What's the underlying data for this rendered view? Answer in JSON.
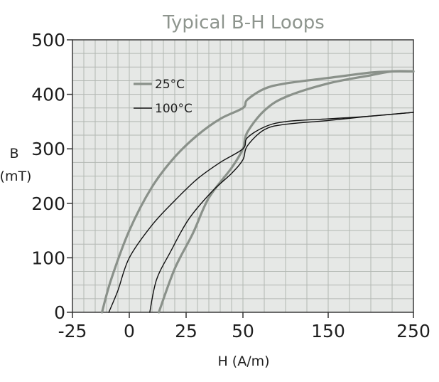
{
  "chart_data": {
    "type": "line",
    "title": "Typical B-H Loops",
    "xlabel": "H (A/m)",
    "ylabel_line1": "B",
    "ylabel_line2": "(mT)",
    "x_ticks": [
      -25,
      0,
      25,
      50,
      150,
      250
    ],
    "x_scale_note": "piecewise axis: linear -25 to 50, compressed 50 to 250",
    "y_ticks": [
      0,
      100,
      200,
      300,
      400,
      500
    ],
    "ylim": [
      0,
      500
    ],
    "grid": true,
    "legend_position": "top-left",
    "series": [
      {
        "name": "25°C",
        "color": "#8a918a",
        "branches": [
          [
            [
              -12,
              0
            ],
            [
              -8,
              60
            ],
            [
              0,
              150
            ],
            [
              10,
              230
            ],
            [
              20,
              285
            ],
            [
              30,
              325
            ],
            [
              40,
              355
            ],
            [
              50,
              375
            ],
            [
              55,
              390
            ],
            [
              75,
              410
            ],
            [
              100,
              420
            ],
            [
              150,
              430
            ],
            [
              200,
              440
            ],
            [
              225,
              442
            ],
            [
              250,
              442
            ]
          ],
          [
            [
              13,
              0
            ],
            [
              20,
              80
            ],
            [
              28,
              145
            ],
            [
              35,
              210
            ],
            [
              45,
              265
            ],
            [
              50,
              300
            ],
            [
              55,
              330
            ],
            [
              75,
              370
            ],
            [
              100,
              395
            ],
            [
              150,
              420
            ],
            [
              200,
              435
            ],
            [
              225,
              442
            ],
            [
              250,
              442
            ]
          ]
        ]
      },
      {
        "name": "100°C",
        "color": "#111111",
        "branches": [
          [
            [
              -9,
              0
            ],
            [
              -5,
              40
            ],
            [
              0,
              100
            ],
            [
              10,
              160
            ],
            [
              20,
              205
            ],
            [
              30,
              245
            ],
            [
              40,
              275
            ],
            [
              50,
              300
            ],
            [
              55,
              320
            ],
            [
              75,
              340
            ],
            [
              100,
              350
            ],
            [
              150,
              355
            ],
            [
              200,
              360
            ],
            [
              250,
              367
            ]
          ],
          [
            [
              9,
              0
            ],
            [
              12,
              60
            ],
            [
              18,
              110
            ],
            [
              26,
              170
            ],
            [
              36,
              220
            ],
            [
              45,
              255
            ],
            [
              50,
              280
            ],
            [
              55,
              305
            ],
            [
              75,
              335
            ],
            [
              100,
              345
            ],
            [
              150,
              352
            ],
            [
              200,
              360
            ],
            [
              250,
              367
            ]
          ]
        ]
      }
    ]
  }
}
